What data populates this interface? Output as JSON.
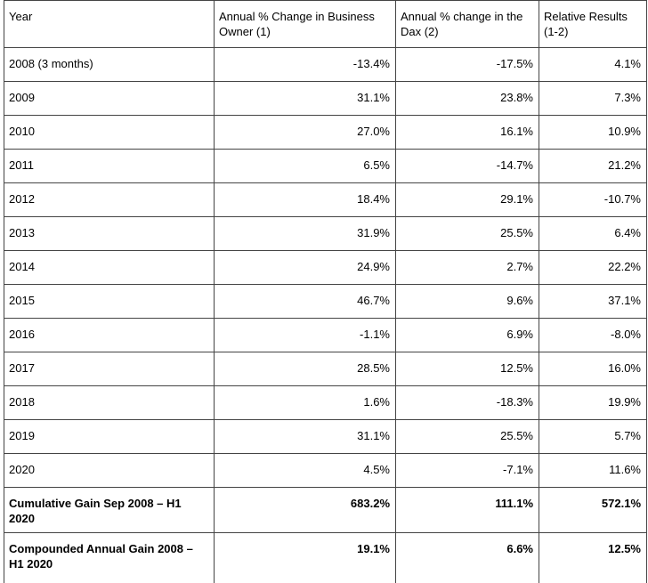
{
  "table": {
    "header": [
      "Year",
      "Annual % Change in Business Owner (1)",
      "Annual % change in the Dax (2)",
      "Relative Results (1-2)"
    ],
    "rows": [
      [
        "2008 (3 months)",
        "-13.4%",
        "-17.5%",
        "4.1%"
      ],
      [
        "2009",
        "31.1%",
        "23.8%",
        "7.3%"
      ],
      [
        "2010",
        "27.0%",
        "16.1%",
        "10.9%"
      ],
      [
        "2011",
        "6.5%",
        "-14.7%",
        "21.2%"
      ],
      [
        "2012",
        "18.4%",
        "29.1%",
        "-10.7%"
      ],
      [
        "2013",
        "31.9%",
        "25.5%",
        "6.4%"
      ],
      [
        "2014",
        "24.9%",
        "2.7%",
        "22.2%"
      ],
      [
        "2015",
        "46.7%",
        "9.6%",
        "37.1%"
      ],
      [
        "2016",
        "-1.1%",
        "6.9%",
        "-8.0%"
      ],
      [
        "2017",
        "28.5%",
        "12.5%",
        "16.0%"
      ],
      [
        "2018",
        "1.6%",
        "-18.3%",
        "19.9%"
      ],
      [
        "2019",
        "31.1%",
        "25.5%",
        "5.7%"
      ],
      [
        "2020",
        "4.5%",
        "-7.1%",
        "11.6%"
      ],
      [
        "Cumulative Gain Sep 2008 – H1 2020",
        "683.2%",
        "111.1%",
        "572.1%"
      ],
      [
        "Compounded Annual Gain 2008 – H1 2020",
        "19.1%",
        "6.6%",
        "12.5%"
      ]
    ]
  }
}
